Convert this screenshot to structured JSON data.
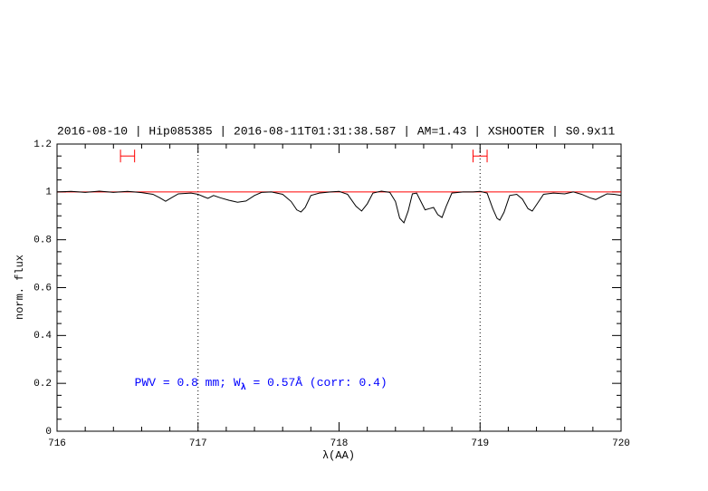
{
  "chart_data": {
    "type": "line",
    "title": "2016-08-10 | Hip085385 | 2016-08-11T01:31:38.587 | AM=1.43 | XSHOOTER | S0.9x11",
    "xlabel": "λ(AA)",
    "ylabel": "norm. flux",
    "annotation": {
      "prefix": "PWV = 0.8 mm; W",
      "subscript": "λ",
      "suffix": " = 0.57Å (corr: 0.4)",
      "x": 716.55,
      "y": 0.2
    },
    "xlim": [
      716,
      720
    ],
    "ylim": [
      0,
      1.2
    ],
    "xticks": [
      716,
      717,
      718,
      719,
      720
    ],
    "yticks": [
      0,
      0.2,
      0.4,
      0.6,
      0.8,
      1,
      1.2
    ],
    "xminorticks": [
      716.2,
      716.4,
      716.6,
      716.8,
      717.2,
      717.4,
      717.6,
      717.8,
      718.2,
      718.4,
      718.6,
      718.8,
      719.2,
      719.4,
      719.6,
      719.8
    ],
    "yminorticks": [
      0.05,
      0.1,
      0.15,
      0.25,
      0.3,
      0.35,
      0.45,
      0.5,
      0.55,
      0.65,
      0.7,
      0.75,
      0.85,
      0.9,
      0.95,
      1.05,
      1.1,
      1.15
    ],
    "color": "#000000",
    "title_color": "#0000ff",
    "reference_line": {
      "y": 1,
      "color": "#ff0000"
    },
    "vlines": [
      717,
      719
    ],
    "markers": [
      {
        "x": 716.5,
        "xerr": 0.05,
        "y": 1.15
      },
      {
        "x": 719.0,
        "xerr": 0.05,
        "y": 1.15
      }
    ],
    "marker_color": "#ff0000",
    "x": [
      716.0,
      716.1,
      716.2,
      716.3,
      716.4,
      716.5,
      716.6,
      716.68,
      716.73,
      716.77,
      716.81,
      716.86,
      716.95,
      717.0,
      717.04,
      717.07,
      717.11,
      717.16,
      717.22,
      717.28,
      717.34,
      717.4,
      717.45,
      717.52,
      717.6,
      717.66,
      717.7,
      717.73,
      717.76,
      717.8,
      717.86,
      717.94,
      718.0,
      718.06,
      718.12,
      718.16,
      718.2,
      718.24,
      718.3,
      718.36,
      718.4,
      718.43,
      718.46,
      718.49,
      718.52,
      718.55,
      718.58,
      718.61,
      718.64,
      718.67,
      718.7,
      718.73,
      718.76,
      718.8,
      718.88,
      718.95,
      719.0,
      719.05,
      719.09,
      719.12,
      719.14,
      719.17,
      719.21,
      719.26,
      719.3,
      719.34,
      719.37,
      719.41,
      719.45,
      719.52,
      719.6,
      719.66,
      719.72,
      719.78,
      719.82,
      719.86,
      719.9,
      719.95,
      720.0
    ],
    "values": [
      1.0,
      1.002,
      0.998,
      1.003,
      0.998,
      1.002,
      0.997,
      0.99,
      0.975,
      0.961,
      0.975,
      0.992,
      0.995,
      0.99,
      0.98,
      0.973,
      0.985,
      0.975,
      0.965,
      0.957,
      0.962,
      0.985,
      0.998,
      1.0,
      0.99,
      0.96,
      0.925,
      0.916,
      0.935,
      0.985,
      0.995,
      1.0,
      1.002,
      0.99,
      0.94,
      0.92,
      0.95,
      0.995,
      1.003,
      0.998,
      0.96,
      0.89,
      0.871,
      0.92,
      0.992,
      0.995,
      0.96,
      0.925,
      0.93,
      0.935,
      0.905,
      0.893,
      0.94,
      0.995,
      1.0,
      1.0,
      1.002,
      0.995,
      0.93,
      0.89,
      0.882,
      0.915,
      0.985,
      0.99,
      0.97,
      0.93,
      0.92,
      0.955,
      0.99,
      0.995,
      0.992,
      1.0,
      0.99,
      0.975,
      0.968,
      0.98,
      0.992,
      0.99,
      0.985
    ]
  }
}
